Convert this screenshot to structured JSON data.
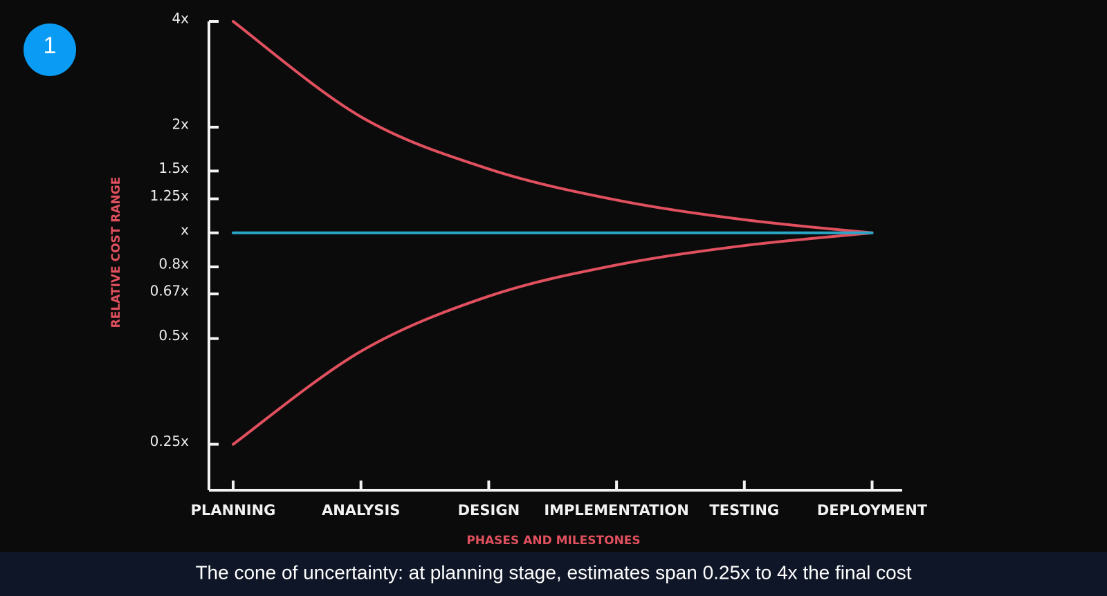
{
  "badge": "1",
  "caption": "The cone of uncertainty: at planning stage, estimates span 0.25x to 4x the final cost",
  "chart_data": {
    "type": "line",
    "x_label": "PHASES AND MILESTONES",
    "y_label": "RELATIVE COST RANGE",
    "categories": [
      "PLANNING",
      "ANALYSIS",
      "DESIGN",
      "IMPLEMENTATION",
      "TESTING",
      "DEPLOYMENT"
    ],
    "series": [
      {
        "color": "#e0505e",
        "values": [
          4,
          2.14,
          1.52,
          1.24,
          1.09,
          1
        ]
      },
      {
        "color": "#e0505e",
        "values": [
          0.25,
          0.46,
          0.66,
          0.81,
          0.92,
          1
        ]
      },
      {
        "color": "#2aa6c9",
        "values": [
          1,
          1,
          1,
          1,
          1,
          1
        ]
      }
    ],
    "y_scale": "log",
    "ylim": [
      0.185,
      4
    ],
    "yticks": [
      {
        "value": 4,
        "label": "4x"
      },
      {
        "value": 2,
        "label": "2x"
      },
      {
        "value": 1.5,
        "label": "1.5x"
      },
      {
        "value": 1.25,
        "label": "1.25x"
      },
      {
        "value": 1,
        "label": "x"
      },
      {
        "value": 0.8,
        "label": "0.8x"
      },
      {
        "value": 0.67,
        "label": "0.67x"
      },
      {
        "value": 0.5,
        "label": "0.5x"
      },
      {
        "value": 0.25,
        "label": "0.25x"
      }
    ]
  }
}
